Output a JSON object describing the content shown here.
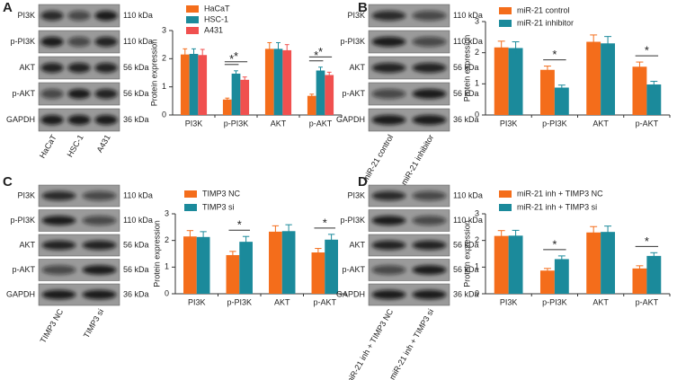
{
  "panel_labels": [
    "A",
    "B",
    "C",
    "D"
  ],
  "blots": [
    {
      "proteins": [
        "PI3K",
        "p-PI3K",
        "AKT",
        "p-AKT",
        "GAPDH"
      ],
      "sizes": [
        "110 kDa",
        "110 kDa",
        "56 kDa",
        "56 kDa",
        "36 kDa"
      ],
      "lanes": [
        "HaCaT",
        "HSC-1",
        "A431"
      ]
    },
    {
      "proteins": [
        "PI3K",
        "p-PI3K",
        "AKT",
        "p-AKT",
        "GAPDH"
      ],
      "sizes": [
        "110 kDa",
        "110 kDa",
        "56 kDa",
        "56 kDa",
        "36 kDa"
      ],
      "lanes": [
        "miR-21 control",
        "miR-21 inhibitor"
      ]
    },
    {
      "proteins": [
        "PI3K",
        "p-PI3K",
        "AKT",
        "p-AKT",
        "GAPDH"
      ],
      "sizes": [
        "110 kDa",
        "110 kDa",
        "56 kDa",
        "56 kDa",
        "36 kDa"
      ],
      "lanes": [
        "TIMP3 NC",
        "TIMP3 si"
      ]
    },
    {
      "proteins": [
        "PI3K",
        "p-PI3K",
        "AKT",
        "p-AKT",
        "GAPDH"
      ],
      "sizes": [
        "110 kDa",
        "110 kDa",
        "56 kDa",
        "56 kDa",
        "36 kDa"
      ],
      "lanes": [
        "miR-21 inh + TIMP3 NC",
        "miR-21 inh + TIMP3 si"
      ]
    }
  ],
  "chart_data": [
    {
      "type": "bar",
      "ylabel": "Protein expression",
      "categories": [
        "PI3K",
        "p-PI3K",
        "AKT",
        "p-AKT"
      ],
      "series": [
        {
          "name": "HaCaT",
          "color": "#f46d1b",
          "values": [
            2.15,
            0.55,
            2.35,
            0.68
          ],
          "errors": [
            0.2,
            0.05,
            0.22,
            0.06
          ]
        },
        {
          "name": "HSC-1",
          "color": "#1b8a9b",
          "values": [
            2.17,
            1.47,
            2.35,
            1.58
          ],
          "errors": [
            0.18,
            0.1,
            0.22,
            0.12
          ]
        },
        {
          "name": "A431",
          "color": "#f0504f",
          "values": [
            2.13,
            1.25,
            2.3,
            1.42
          ],
          "errors": [
            0.2,
            0.1,
            0.2,
            0.1
          ]
        }
      ],
      "ylim": [
        0,
        3
      ],
      "yticks": [
        0,
        1,
        2,
        3
      ],
      "significance": [
        {
          "category": "p-PI3K",
          "between": [
            "HaCaT",
            "HSC-1"
          ],
          "label": "*"
        },
        {
          "category": "p-PI3K",
          "between": [
            "HaCaT",
            "A431"
          ],
          "label": "*"
        },
        {
          "category": "p-AKT",
          "between": [
            "HaCaT",
            "HSC-1"
          ],
          "label": "*"
        },
        {
          "category": "p-AKT",
          "between": [
            "HaCaT",
            "A431"
          ],
          "label": "*"
        }
      ]
    },
    {
      "type": "bar",
      "ylabel": "Protein expression",
      "categories": [
        "PI3K",
        "p-PI3K",
        "AKT",
        "p-AKT"
      ],
      "series": [
        {
          "name": "miR-21 control",
          "color": "#f46d1b",
          "values": [
            2.17,
            1.45,
            2.35,
            1.55
          ],
          "errors": [
            0.2,
            0.12,
            0.22,
            0.15
          ]
        },
        {
          "name": "miR-21 inhibitor",
          "color": "#1b8a9b",
          "values": [
            2.15,
            0.88,
            2.3,
            0.98
          ],
          "errors": [
            0.2,
            0.08,
            0.22,
            0.1
          ]
        }
      ],
      "ylim": [
        0,
        3
      ],
      "yticks": [
        0,
        1,
        2,
        3
      ],
      "significance": [
        {
          "category": "p-PI3K",
          "between": [
            "miR-21 control",
            "miR-21 inhibitor"
          ],
          "label": "*"
        },
        {
          "category": "p-AKT",
          "between": [
            "miR-21 control",
            "miR-21 inhibitor"
          ],
          "label": "*"
        }
      ]
    },
    {
      "type": "bar",
      "ylabel": "Protein expression",
      "categories": [
        "PI3K",
        "p-PI3K",
        "AKT",
        "p-AKT"
      ],
      "series": [
        {
          "name": "TIMP3 NC",
          "color": "#f46d1b",
          "values": [
            2.15,
            1.45,
            2.33,
            1.55
          ],
          "errors": [
            0.22,
            0.14,
            0.22,
            0.15
          ]
        },
        {
          "name": "TIMP3 si",
          "color": "#1b8a9b",
          "values": [
            2.13,
            1.95,
            2.35,
            2.03
          ],
          "errors": [
            0.2,
            0.2,
            0.24,
            0.2
          ]
        }
      ],
      "ylim": [
        0,
        3
      ],
      "yticks": [
        0,
        1,
        2,
        3
      ],
      "significance": [
        {
          "category": "p-PI3K",
          "between": [
            "TIMP3 NC",
            "TIMP3 si"
          ],
          "label": "*"
        },
        {
          "category": "p-AKT",
          "between": [
            "TIMP3 NC",
            "TIMP3 si"
          ],
          "label": "*"
        }
      ]
    },
    {
      "type": "bar",
      "ylabel": "Protein expression",
      "categories": [
        "PI3K",
        "p-PI3K",
        "AKT",
        "p-AKT"
      ],
      "series": [
        {
          "name": "miR-21 inh + TIMP3 NC",
          "color": "#f46d1b",
          "values": [
            2.17,
            0.87,
            2.3,
            0.95
          ],
          "errors": [
            0.2,
            0.08,
            0.22,
            0.1
          ]
        },
        {
          "name": "miR-21 inh + TIMP3 si",
          "color": "#1b8a9b",
          "values": [
            2.18,
            1.3,
            2.32,
            1.42
          ],
          "errors": [
            0.2,
            0.12,
            0.22,
            0.12
          ]
        }
      ],
      "ylim": [
        0,
        3
      ],
      "yticks": [
        0,
        1,
        2,
        3
      ],
      "significance": [
        {
          "category": "p-PI3K",
          "between": [
            "miR-21 inh + TIMP3 NC",
            "miR-21 inh + TIMP3 si"
          ],
          "label": "*"
        },
        {
          "category": "p-AKT",
          "between": [
            "miR-21 inh + TIMP3 NC",
            "miR-21 inh + TIMP3 si"
          ],
          "label": "*"
        }
      ]
    }
  ]
}
